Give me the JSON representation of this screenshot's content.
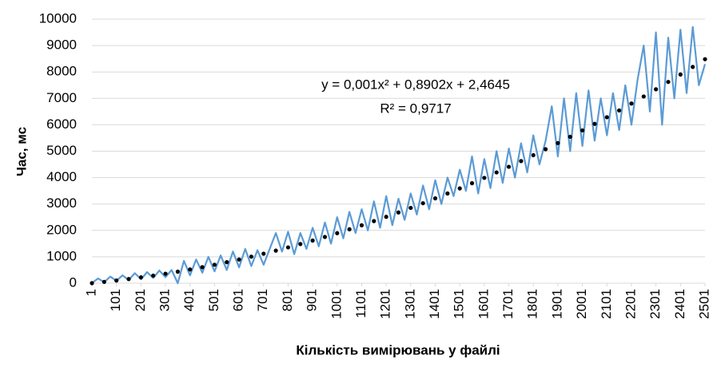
{
  "chart_data": {
    "type": "line",
    "x_label": "Кількість вимірювань у файлі",
    "y_label": "Час, мс",
    "annotations": [
      "y = 0,001x² + 0,8902x + 2,4645",
      "R² = 0,9717"
    ],
    "xlim": [
      1,
      2501
    ],
    "xticks": [
      1,
      101,
      201,
      301,
      401,
      501,
      601,
      701,
      801,
      901,
      1001,
      1101,
      1201,
      1301,
      1401,
      1501,
      1601,
      1701,
      1801,
      1901,
      2001,
      2101,
      2201,
      2301,
      2401,
      2501
    ],
    "ylim": [
      0,
      10000
    ],
    "yticks": [
      0,
      1000,
      2000,
      3000,
      4000,
      5000,
      6000,
      7000,
      8000,
      9000,
      10000
    ],
    "grid": true,
    "series": [
      {
        "color": "#5b9bd5",
        "style": "line",
        "x": [
          1,
          26,
          51,
          76,
          101,
          126,
          151,
          176,
          201,
          226,
          251,
          276,
          301,
          326,
          351,
          376,
          401,
          426,
          451,
          476,
          501,
          526,
          551,
          576,
          601,
          626,
          651,
          676,
          701,
          726,
          751,
          776,
          801,
          826,
          851,
          876,
          901,
          926,
          951,
          976,
          1001,
          1026,
          1051,
          1076,
          1101,
          1126,
          1151,
          1176,
          1201,
          1226,
          1251,
          1276,
          1301,
          1326,
          1351,
          1376,
          1401,
          1426,
          1451,
          1476,
          1501,
          1526,
          1551,
          1576,
          1601,
          1626,
          1651,
          1676,
          1701,
          1726,
          1751,
          1776,
          1801,
          1826,
          1851,
          1876,
          1901,
          1926,
          1951,
          1976,
          2001,
          2026,
          2051,
          2076,
          2101,
          2126,
          2151,
          2176,
          2201,
          2226,
          2251,
          2276,
          2301,
          2326,
          2351,
          2376,
          2401,
          2426,
          2451,
          2476,
          2501
        ],
        "values": [
          10,
          180,
          40,
          250,
          90,
          300,
          120,
          380,
          150,
          420,
          200,
          480,
          230,
          500,
          0,
          850,
          300,
          900,
          400,
          1000,
          450,
          1050,
          500,
          1200,
          600,
          1300,
          650,
          1250,
          700,
          1300,
          1900,
          1200,
          1950,
          1100,
          1900,
          1300,
          2100,
          1400,
          2300,
          1500,
          2500,
          1700,
          2700,
          1900,
          2800,
          2000,
          3100,
          2100,
          3300,
          2200,
          3200,
          2400,
          3400,
          2600,
          3700,
          2800,
          3900,
          3000,
          4000,
          3300,
          4300,
          3500,
          4800,
          3400,
          4700,
          3600,
          5000,
          3800,
          5100,
          4000,
          5300,
          4200,
          5600,
          4500,
          5400,
          6700,
          4800,
          7000,
          5000,
          7200,
          5200,
          7300,
          5400,
          7000,
          5600,
          7200,
          5800,
          7500,
          6000,
          7700,
          9000,
          6500,
          9500,
          6000,
          9300,
          7000,
          9600,
          7200,
          9700,
          7500,
          8300
        ]
      },
      {
        "color": "#000000",
        "style": "dots",
        "x": [
          1,
          51,
          101,
          151,
          201,
          251,
          301,
          351,
          401,
          451,
          501,
          551,
          601,
          651,
          701,
          751,
          801,
          851,
          901,
          951,
          1001,
          1051,
          1101,
          1151,
          1201,
          1251,
          1301,
          1351,
          1401,
          1451,
          1501,
          1551,
          1601,
          1651,
          1701,
          1751,
          1801,
          1851,
          1901,
          1951,
          2001,
          2051,
          2101,
          2151,
          2201,
          2251,
          2301,
          2351,
          2401,
          2451,
          2501
        ],
        "values": [
          3,
          50,
          102,
          159,
          222,
          289,
          361,
          438,
          521,
          608,
          700,
          797,
          899,
          1006,
          1118,
          1234,
          1357,
          1484,
          1616,
          1753,
          1896,
          2043,
          2194,
          2352,
          2514,
          2681,
          2853,
          3030,
          3213,
          3399,
          3591,
          3788,
          3990,
          4197,
          4409,
          4626,
          4848,
          5075,
          5307,
          5545,
          5787,
          6034,
          6286,
          6543,
          6805,
          7072,
          7345,
          7622,
          7904,
          8191,
          8483
        ]
      }
    ]
  }
}
